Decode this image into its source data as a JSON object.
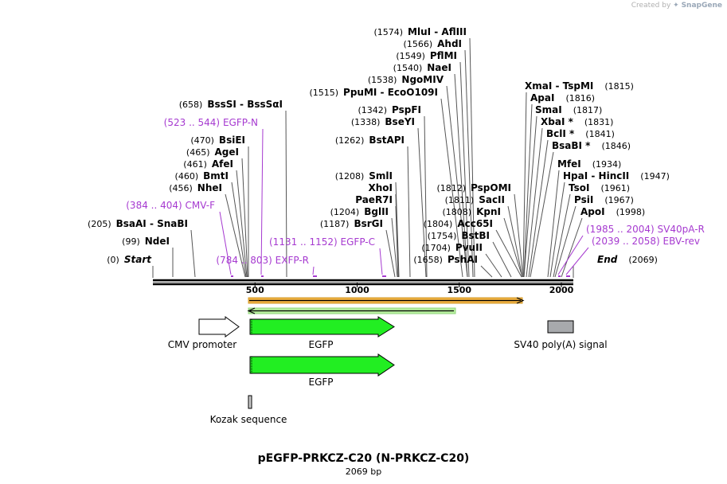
{
  "credit": {
    "prefix": "Created by",
    "brand": "SnapGene"
  },
  "title": "pEGFP-PRKCZ-C20 (N-PRKCZ-C20)",
  "subtitle": "2069 bp",
  "sequence_length": 2069,
  "ticks": [
    500,
    1000,
    1500,
    2000
  ],
  "colors": {
    "primer": "#a63ad0",
    "egfp": "#22ee22",
    "orf_orange": "#f0b040",
    "orf_green": "#b8f0a0",
    "sv40": "#a7a9ac"
  },
  "enzymes": [
    {
      "pos": "(0)",
      "name": "Start",
      "italic": true
    },
    {
      "pos": "(99)",
      "name": "NdeI"
    },
    {
      "pos": "(205)",
      "name": "BsaAI  -  SnaBI"
    },
    {
      "pos": "(456)",
      "name": "NheI"
    },
    {
      "pos": "(460)",
      "name": "BmtI"
    },
    {
      "pos": "(461)",
      "name": "AfeI"
    },
    {
      "pos": "(465)",
      "name": "AgeI"
    },
    {
      "pos": "(470)",
      "name": "BsiEI"
    },
    {
      "pos": "(658)",
      "name": "BssSI  -  BssSαI"
    },
    {
      "pos": "(1187)",
      "name": "BsrGI"
    },
    {
      "pos": "(1204)",
      "name": "BglII"
    },
    {
      "pos": "",
      "name": "PaeR7I"
    },
    {
      "pos": "",
      "name": "XhoI"
    },
    {
      "pos": "(1208)",
      "name": "SmlI"
    },
    {
      "pos": "(1262)",
      "name": "BstAPI"
    },
    {
      "pos": "(1338)",
      "name": "BseYI"
    },
    {
      "pos": "(1342)",
      "name": "PspFI"
    },
    {
      "pos": "(1515)",
      "name": "PpuMI  -  EcoO109I"
    },
    {
      "pos": "(1538)",
      "name": "NgoMIV"
    },
    {
      "pos": "(1540)",
      "name": "NaeI"
    },
    {
      "pos": "(1549)",
      "name": "PflMI"
    },
    {
      "pos": "(1566)",
      "name": "AhdI"
    },
    {
      "pos": "(1574)",
      "name": "MluI  -  AflIII"
    },
    {
      "pos": "(1658)",
      "name": "PshAI"
    },
    {
      "pos": "(1704)",
      "name": "PvuII"
    },
    {
      "pos": "(1754)",
      "name": "BstBI"
    },
    {
      "pos": "(1804)",
      "name": "Acc65I"
    },
    {
      "pos": "(1808)",
      "name": "KpnI"
    },
    {
      "pos": "(1811)",
      "name": "SacII"
    },
    {
      "pos": "(1812)",
      "name": "PspOMI"
    },
    {
      "pos": "(1815)",
      "name": "XmaI  -  TspMI"
    },
    {
      "pos": "(1816)",
      "name": "ApaI"
    },
    {
      "pos": "(1817)",
      "name": "SmaI"
    },
    {
      "pos": "(1831)",
      "name": "XbaI *"
    },
    {
      "pos": "(1841)",
      "name": "BclI *"
    },
    {
      "pos": "(1846)",
      "name": "BsaBI *"
    },
    {
      "pos": "(1934)",
      "name": "MfeI"
    },
    {
      "pos": "(1947)",
      "name": "HpaI  -  HincII"
    },
    {
      "pos": "(1961)",
      "name": "TsoI"
    },
    {
      "pos": "(1967)",
      "name": "PsiI"
    },
    {
      "pos": "(1998)",
      "name": "ApoI"
    },
    {
      "pos": "(2069)",
      "name": "End",
      "italic": true
    }
  ],
  "primers": [
    {
      "range": "(384 .. 404)",
      "name": "CMV-F"
    },
    {
      "range": "(523 .. 544)",
      "name": "EGFP-N"
    },
    {
      "range": "(784 .. 803)",
      "name": "EXFP-R"
    },
    {
      "range": "(1131 .. 1152)",
      "name": "EGFP-C"
    },
    {
      "range": "(1985 .. 2004)",
      "name": "SV40pA-R"
    },
    {
      "range": "(2039 .. 2058)",
      "name": "EBV-rev"
    }
  ],
  "features": [
    {
      "name": "CMV promoter"
    },
    {
      "name": "EGFP"
    },
    {
      "name": "SV40 poly(A) signal"
    },
    {
      "name": "EGFP"
    },
    {
      "name": "Kozak sequence"
    }
  ]
}
